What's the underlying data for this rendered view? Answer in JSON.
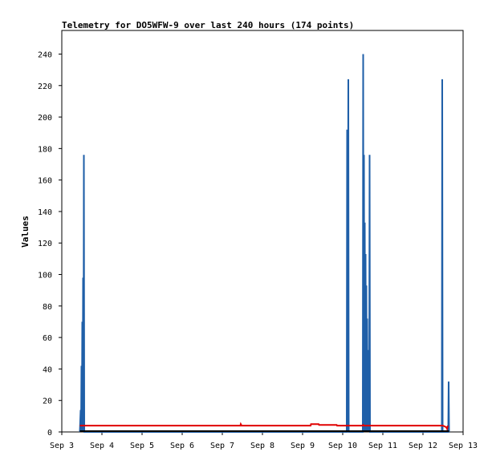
{
  "chart_data": {
    "type": "line",
    "title": "Telemetry for DO5WFW-9 over last 240 hours (174 points)",
    "ylabel": "Values",
    "xlabel": "",
    "x_categories": [
      "Sep 3",
      "Sep 4",
      "Sep 5",
      "Sep 6",
      "Sep 7",
      "Sep 8",
      "Sep 9",
      "Sep 10",
      "Sep 11",
      "Sep 12",
      "Sep 13"
    ],
    "ylim": [
      0,
      255
    ],
    "y_ticks": [
      0,
      20,
      40,
      60,
      80,
      100,
      120,
      140,
      160,
      180,
      200,
      220,
      240
    ],
    "grid": false,
    "series": [
      {
        "name": "",
        "color": "#1f5fa8",
        "points": [
          [
            0.45,
            0
          ],
          [
            0.47,
            14
          ],
          [
            0.48,
            0
          ],
          [
            0.49,
            42
          ],
          [
            0.5,
            0
          ],
          [
            0.51,
            70
          ],
          [
            0.52,
            0
          ],
          [
            0.53,
            98
          ],
          [
            0.54,
            0
          ],
          [
            0.55,
            176
          ],
          [
            0.56,
            0
          ],
          [
            7.1,
            0
          ],
          [
            7.11,
            192
          ],
          [
            7.12,
            0
          ],
          [
            7.14,
            224
          ],
          [
            7.15,
            0
          ],
          [
            7.5,
            0
          ],
          [
            7.51,
            240
          ],
          [
            7.52,
            0
          ],
          [
            7.53,
            176
          ],
          [
            7.54,
            0
          ],
          [
            7.55,
            133
          ],
          [
            7.56,
            0
          ],
          [
            7.57,
            113
          ],
          [
            7.58,
            0
          ],
          [
            7.59,
            93
          ],
          [
            7.6,
            0
          ],
          [
            7.61,
            72
          ],
          [
            7.62,
            0
          ],
          [
            7.63,
            52
          ],
          [
            7.64,
            0
          ],
          [
            7.65,
            30
          ],
          [
            7.66,
            0
          ],
          [
            7.67,
            176
          ],
          [
            7.68,
            0
          ],
          [
            9.47,
            0
          ],
          [
            9.48,
            224
          ],
          [
            9.49,
            0
          ],
          [
            9.63,
            0
          ],
          [
            9.64,
            32
          ],
          [
            9.65,
            0
          ]
        ]
      },
      {
        "name": "",
        "color": "#e00000",
        "points": [
          [
            0.45,
            4
          ],
          [
            4.45,
            4
          ],
          [
            4.46,
            5
          ],
          [
            4.48,
            4
          ],
          [
            6.2,
            4
          ],
          [
            6.21,
            5
          ],
          [
            6.4,
            5
          ],
          [
            6.41,
            4.5
          ],
          [
            6.85,
            4.5
          ],
          [
            6.86,
            4
          ],
          [
            7.5,
            4
          ],
          [
            7.51,
            4.5
          ],
          [
            7.53,
            4
          ],
          [
            9.5,
            4
          ],
          [
            9.58,
            3
          ],
          [
            9.6,
            2
          ],
          [
            9.62,
            4
          ]
        ]
      },
      {
        "name": "",
        "color": "#000000",
        "points": [
          [
            0.45,
            0.5
          ],
          [
            9.65,
            0.5
          ]
        ]
      }
    ]
  }
}
